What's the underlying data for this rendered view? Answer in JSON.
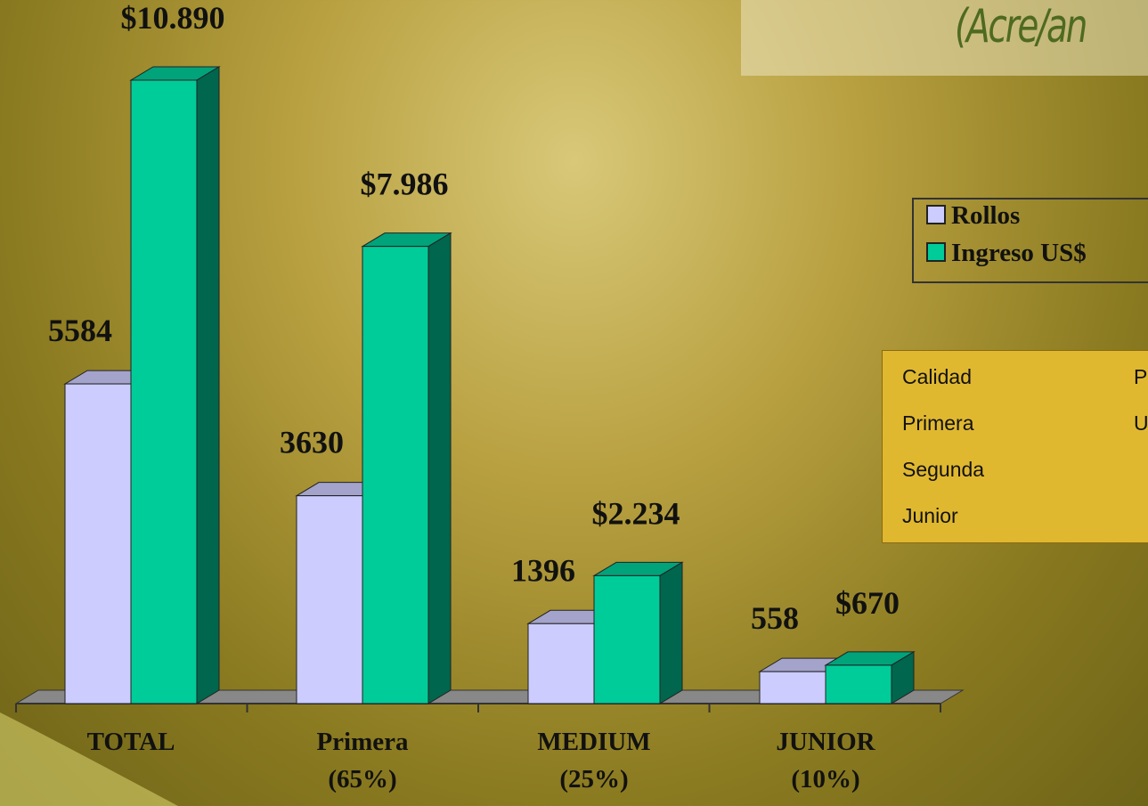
{
  "chart_data": {
    "type": "bar3d",
    "title": "(Acre/an",
    "categories": [
      "TOTAL",
      "Primera (65%)",
      "MEDIUM (25%)",
      "JUNIOR (10%)"
    ],
    "series": [
      {
        "name": "Rollos",
        "color": "#ccccff",
        "values": [
          5584,
          3630,
          1396,
          558
        ],
        "value_labels": [
          "5584",
          "3630",
          "1396",
          "558"
        ]
      },
      {
        "name": "Ingreso US$",
        "color": "#00cc99",
        "values": [
          10890,
          7986,
          2234,
          670
        ],
        "value_labels": [
          "$10.890",
          "$7.986",
          "$2.234",
          "$670"
        ]
      }
    ],
    "legend": "right"
  },
  "table": {
    "rows": [
      [
        "Calidad",
        "P"
      ],
      [
        "Primera",
        "U"
      ],
      [
        "Segunda"
      ],
      [
        "Junior"
      ]
    ]
  }
}
